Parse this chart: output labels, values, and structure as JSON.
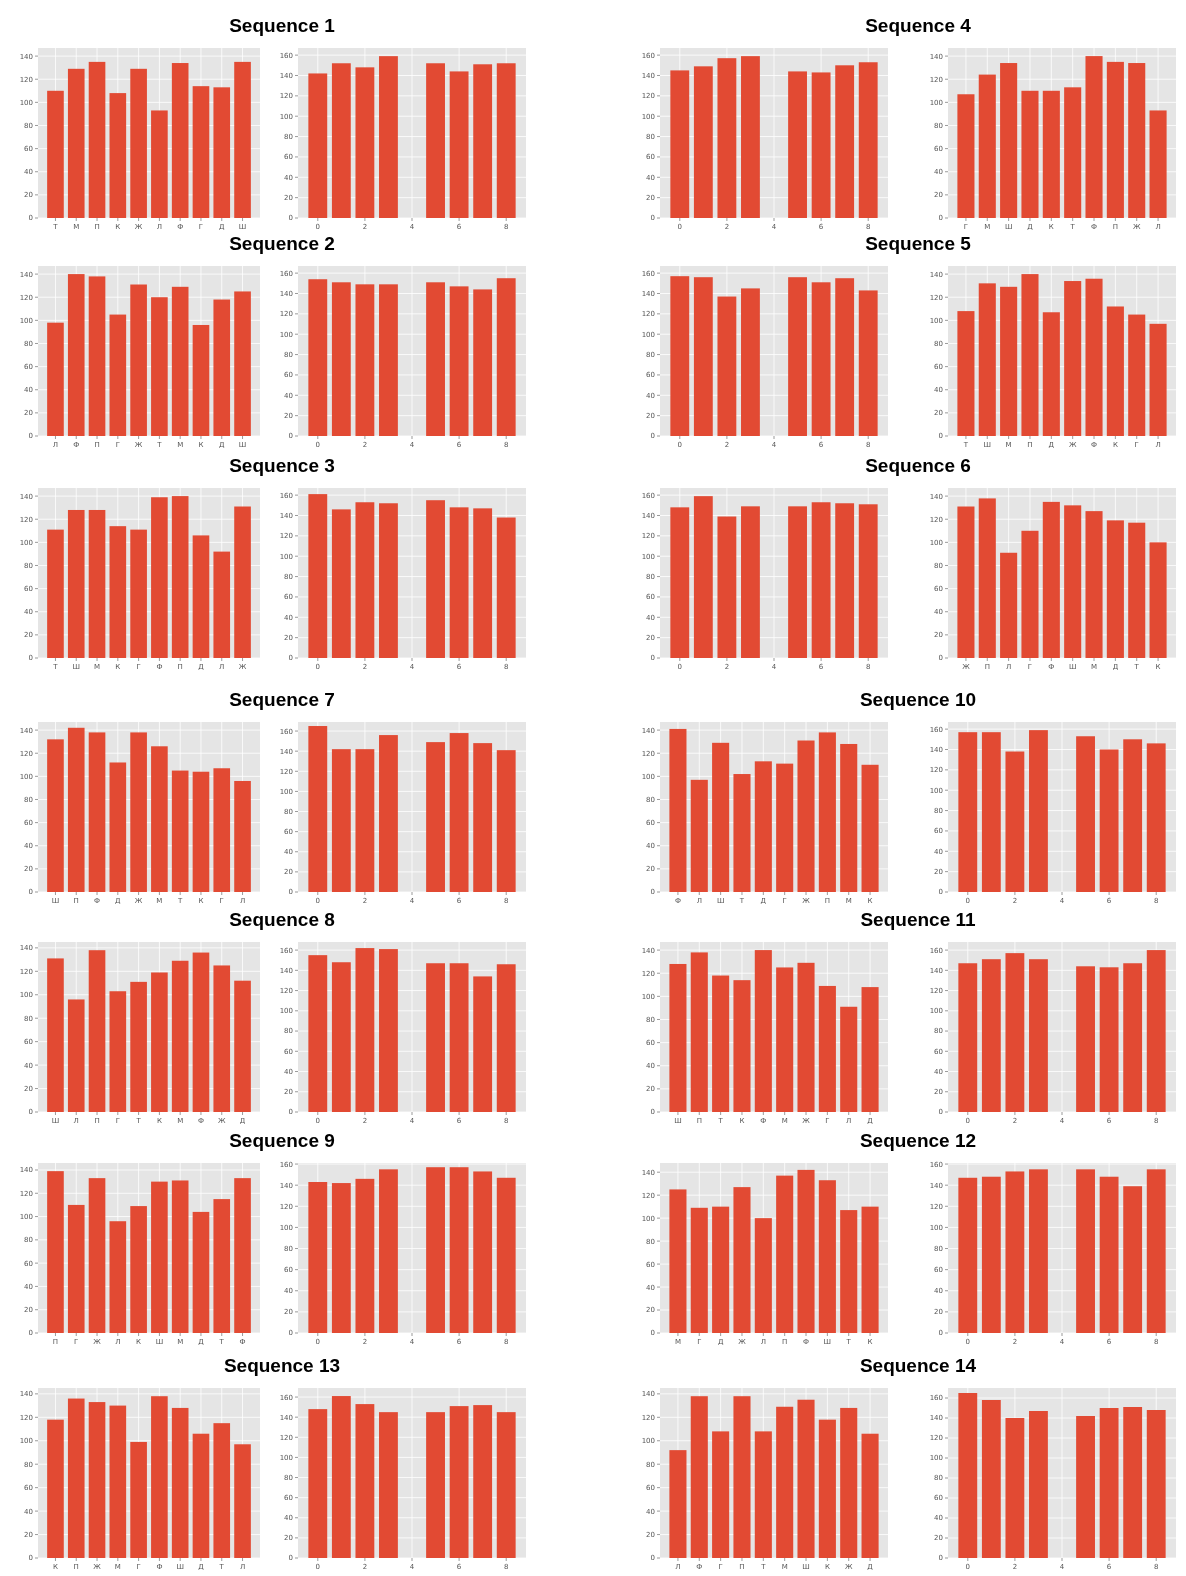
{
  "chart_data": [
    {
      "type": "bar",
      "title": "Sequence 1",
      "categories": [
        "Т",
        "М",
        "П",
        "К",
        "Ж",
        "Л",
        "Ф",
        "Г",
        "Д",
        "Ш"
      ],
      "values": [
        110,
        129,
        135,
        108,
        129,
        93,
        134,
        114,
        113,
        135
      ],
      "color": "#e24a33",
      "ylim": [
        0,
        147
      ],
      "yticks": [
        0,
        20,
        40,
        60,
        80,
        100,
        120,
        140
      ],
      "grid": true
    },
    {
      "type": "bar",
      "x": [
        0,
        1,
        2,
        3,
        5,
        6,
        7,
        8
      ],
      "values": [
        142,
        152,
        148,
        159,
        152,
        144,
        151,
        152
      ],
      "color": "#e24a33",
      "xlim": [
        -0.84,
        8.84
      ],
      "xticks": [
        0,
        2,
        4,
        6,
        8
      ],
      "ylim": [
        0,
        167
      ],
      "yticks": [
        0,
        20,
        40,
        60,
        80,
        100,
        120,
        140,
        160
      ],
      "grid": true
    },
    {
      "type": "bar",
      "title": "Sequence 4",
      "x": [
        0,
        1,
        2,
        3,
        5,
        6,
        7,
        8
      ],
      "values": [
        145,
        149,
        157,
        159,
        144,
        143,
        150,
        153
      ],
      "color": "#e24a33",
      "xlim": [
        -0.84,
        8.84
      ],
      "xticks": [
        0,
        2,
        4,
        6,
        8
      ],
      "ylim": [
        0,
        167
      ],
      "yticks": [
        0,
        20,
        40,
        60,
        80,
        100,
        120,
        140,
        160
      ],
      "grid": true
    },
    {
      "type": "bar",
      "categories": [
        "Г",
        "М",
        "Ш",
        "Д",
        "К",
        "Т",
        "Ф",
        "П",
        "Ж",
        "Л"
      ],
      "values": [
        107,
        124,
        134,
        110,
        110,
        113,
        140,
        135,
        134,
        93
      ],
      "color": "#e24a33",
      "ylim": [
        0,
        147
      ],
      "yticks": [
        0,
        20,
        40,
        60,
        80,
        100,
        120,
        140
      ],
      "grid": true
    },
    {
      "type": "bar",
      "title": "Sequence 2",
      "categories": [
        "Л",
        "Ф",
        "П",
        "Г",
        "Ж",
        "Т",
        "М",
        "К",
        "Д",
        "Ш"
      ],
      "values": [
        98,
        140,
        138,
        105,
        131,
        120,
        129,
        96,
        118,
        125
      ],
      "color": "#e24a33",
      "ylim": [
        0,
        147
      ],
      "yticks": [
        0,
        20,
        40,
        60,
        80,
        100,
        120,
        140
      ],
      "grid": true
    },
    {
      "type": "bar",
      "x": [
        0,
        1,
        2,
        3,
        5,
        6,
        7,
        8
      ],
      "values": [
        154,
        151,
        149,
        149,
        151,
        147,
        144,
        155
      ],
      "color": "#e24a33",
      "xlim": [
        -0.84,
        8.84
      ],
      "xticks": [
        0,
        2,
        4,
        6,
        8
      ],
      "ylim": [
        0,
        167
      ],
      "yticks": [
        0,
        20,
        40,
        60,
        80,
        100,
        120,
        140,
        160
      ],
      "grid": true
    },
    {
      "type": "bar",
      "title": "Sequence 5",
      "x": [
        0,
        1,
        2,
        3,
        5,
        6,
        7,
        8
      ],
      "values": [
        157,
        156,
        137,
        145,
        156,
        151,
        155,
        143
      ],
      "color": "#e24a33",
      "xlim": [
        -0.84,
        8.84
      ],
      "xticks": [
        0,
        2,
        4,
        6,
        8
      ],
      "ylim": [
        0,
        167
      ],
      "yticks": [
        0,
        20,
        40,
        60,
        80,
        100,
        120,
        140,
        160
      ],
      "grid": true
    },
    {
      "type": "bar",
      "categories": [
        "Т",
        "Ш",
        "М",
        "П",
        "Д",
        "Ж",
        "Ф",
        "К",
        "Г",
        "Л"
      ],
      "values": [
        108,
        132,
        129,
        140,
        107,
        134,
        136,
        112,
        105,
        97
      ],
      "color": "#e24a33",
      "ylim": [
        0,
        147
      ],
      "yticks": [
        0,
        20,
        40,
        60,
        80,
        100,
        120,
        140
      ],
      "grid": true
    },
    {
      "type": "bar",
      "title": "Sequence 3",
      "categories": [
        "Т",
        "Ш",
        "М",
        "К",
        "Г",
        "Ф",
        "П",
        "Д",
        "Л",
        "Ж"
      ],
      "values": [
        111,
        128,
        128,
        114,
        111,
        139,
        140,
        106,
        92,
        131
      ],
      "color": "#e24a33",
      "ylim": [
        0,
        147
      ],
      "yticks": [
        0,
        20,
        40,
        60,
        80,
        100,
        120,
        140
      ],
      "grid": true
    },
    {
      "type": "bar",
      "x": [
        0,
        1,
        2,
        3,
        5,
        6,
        7,
        8
      ],
      "values": [
        161,
        146,
        153,
        152,
        155,
        148,
        147,
        138
      ],
      "color": "#e24a33",
      "xlim": [
        -0.84,
        8.84
      ],
      "xticks": [
        0,
        2,
        4,
        6,
        8
      ],
      "ylim": [
        0,
        167
      ],
      "yticks": [
        0,
        20,
        40,
        60,
        80,
        100,
        120,
        140,
        160
      ],
      "grid": true
    },
    {
      "type": "bar",
      "title": "Sequence 6",
      "x": [
        0,
        1,
        2,
        3,
        5,
        6,
        7,
        8
      ],
      "values": [
        148,
        159,
        139,
        149,
        149,
        153,
        152,
        151
      ],
      "color": "#e24a33",
      "xlim": [
        -0.84,
        8.84
      ],
      "xticks": [
        0,
        2,
        4,
        6,
        8
      ],
      "ylim": [
        0,
        167
      ],
      "yticks": [
        0,
        20,
        40,
        60,
        80,
        100,
        120,
        140,
        160
      ],
      "grid": true
    },
    {
      "type": "bar",
      "categories": [
        "Ж",
        "П",
        "Л",
        "Г",
        "Ф",
        "Ш",
        "М",
        "Д",
        "Т",
        "К"
      ],
      "values": [
        131,
        138,
        91,
        110,
        135,
        132,
        127,
        119,
        117,
        100
      ],
      "color": "#e24a33",
      "ylim": [
        0,
        147
      ],
      "yticks": [
        0,
        20,
        40,
        60,
        80,
        100,
        120,
        140
      ],
      "grid": true
    },
    {
      "type": "bar",
      "title": "Sequence 7",
      "categories": [
        "Ш",
        "П",
        "Ф",
        "Д",
        "Ж",
        "М",
        "Т",
        "К",
        "Г",
        "Л"
      ],
      "values": [
        132,
        142,
        138,
        112,
        138,
        126,
        105,
        104,
        107,
        96
      ],
      "color": "#e24a33",
      "ylim": [
        0,
        147
      ],
      "yticks": [
        0,
        20,
        40,
        60,
        80,
        100,
        120,
        140
      ],
      "grid": true
    },
    {
      "type": "bar",
      "x": [
        0,
        1,
        2,
        3,
        5,
        6,
        7,
        8
      ],
      "values": [
        165,
        142,
        142,
        156,
        149,
        158,
        148,
        141
      ],
      "color": "#e24a33",
      "xlim": [
        -0.84,
        8.84
      ],
      "xticks": [
        0,
        2,
        4,
        6,
        8
      ],
      "ylim": [
        0,
        169
      ],
      "yticks": [
        0,
        20,
        40,
        60,
        80,
        100,
        120,
        140,
        160
      ],
      "grid": true
    },
    {
      "type": "bar",
      "title": "Sequence 10",
      "categories": [
        "Ф",
        "Л",
        "Ш",
        "Т",
        "Д",
        "Г",
        "Ж",
        "П",
        "М",
        "К"
      ],
      "values": [
        141,
        97,
        129,
        102,
        113,
        111,
        131,
        138,
        128,
        110
      ],
      "color": "#e24a33",
      "ylim": [
        0,
        147
      ],
      "yticks": [
        0,
        20,
        40,
        60,
        80,
        100,
        120,
        140
      ],
      "grid": true
    },
    {
      "type": "bar",
      "x": [
        0,
        1,
        2,
        3,
        5,
        6,
        7,
        8
      ],
      "values": [
        157,
        157,
        138,
        159,
        153,
        140,
        150,
        146
      ],
      "color": "#e24a33",
      "xlim": [
        -0.84,
        8.84
      ],
      "xticks": [
        0,
        2,
        4,
        6,
        8
      ],
      "ylim": [
        0,
        167
      ],
      "yticks": [
        0,
        20,
        40,
        60,
        80,
        100,
        120,
        140,
        160
      ],
      "grid": true
    },
    {
      "type": "bar",
      "title": "Sequence 8",
      "categories": [
        "Ш",
        "Л",
        "П",
        "Г",
        "Т",
        "К",
        "М",
        "Ф",
        "Ж",
        "Д"
      ],
      "values": [
        131,
        96,
        138,
        103,
        111,
        119,
        129,
        136,
        125,
        112
      ],
      "color": "#e24a33",
      "ylim": [
        0,
        145
      ],
      "yticks": [
        0,
        20,
        40,
        60,
        80,
        100,
        120,
        140
      ],
      "grid": true
    },
    {
      "type": "bar",
      "x": [
        0,
        1,
        2,
        3,
        5,
        6,
        7,
        8
      ],
      "values": [
        155,
        148,
        162,
        161,
        147,
        147,
        134,
        146
      ],
      "color": "#e24a33",
      "xlim": [
        -0.84,
        8.84
      ],
      "xticks": [
        0,
        2,
        4,
        6,
        8
      ],
      "ylim": [
        0,
        168
      ],
      "yticks": [
        0,
        20,
        40,
        60,
        80,
        100,
        120,
        140,
        160
      ],
      "grid": true
    },
    {
      "type": "bar",
      "title": "Sequence 11",
      "categories": [
        "Ш",
        "П",
        "Т",
        "К",
        "Ф",
        "М",
        "Ж",
        "Г",
        "Л",
        "Д"
      ],
      "values": [
        128,
        138,
        118,
        114,
        140,
        125,
        129,
        109,
        91,
        108
      ],
      "color": "#e24a33",
      "ylim": [
        0,
        147
      ],
      "yticks": [
        0,
        20,
        40,
        60,
        80,
        100,
        120,
        140
      ],
      "grid": true
    },
    {
      "type": "bar",
      "x": [
        0,
        1,
        2,
        3,
        5,
        6,
        7,
        8
      ],
      "values": [
        147,
        151,
        157,
        151,
        144,
        143,
        147,
        160
      ],
      "color": "#e24a33",
      "xlim": [
        -0.84,
        8.84
      ],
      "xticks": [
        0,
        2,
        4,
        6,
        8
      ],
      "ylim": [
        0,
        168
      ],
      "yticks": [
        0,
        20,
        40,
        60,
        80,
        100,
        120,
        140,
        160
      ],
      "grid": true
    },
    {
      "type": "bar",
      "title": "Sequence 9",
      "categories": [
        "П",
        "Г",
        "Ж",
        "Л",
        "К",
        "Ш",
        "М",
        "Д",
        "Т",
        "Ф"
      ],
      "values": [
        139,
        110,
        133,
        96,
        109,
        130,
        131,
        104,
        115,
        133
      ],
      "color": "#e24a33",
      "ylim": [
        0,
        146
      ],
      "yticks": [
        0,
        20,
        40,
        60,
        80,
        100,
        120,
        140
      ],
      "grid": true
    },
    {
      "type": "bar",
      "x": [
        0,
        1,
        2,
        3,
        5,
        6,
        7,
        8
      ],
      "values": [
        143,
        142,
        146,
        155,
        157,
        157,
        153,
        147
      ],
      "color": "#e24a33",
      "xlim": [
        -0.84,
        8.84
      ],
      "xticks": [
        0,
        2,
        4,
        6,
        8
      ],
      "ylim": [
        0,
        161
      ],
      "yticks": [
        0,
        20,
        40,
        60,
        80,
        100,
        120,
        140,
        160
      ],
      "grid": true
    },
    {
      "type": "bar",
      "title": "Sequence 12",
      "categories": [
        "М",
        "Г",
        "Д",
        "Ж",
        "Л",
        "П",
        "Ф",
        "Ш",
        "Т",
        "К"
      ],
      "values": [
        125,
        109,
        110,
        127,
        100,
        137,
        142,
        133,
        107,
        110
      ],
      "color": "#e24a33",
      "ylim": [
        0,
        148
      ],
      "yticks": [
        0,
        20,
        40,
        60,
        80,
        100,
        120,
        140
      ],
      "grid": true
    },
    {
      "type": "bar",
      "x": [
        0,
        1,
        2,
        3,
        5,
        6,
        7,
        8
      ],
      "values": [
        147,
        148,
        153,
        155,
        155,
        148,
        139,
        155
      ],
      "color": "#e24a33",
      "xlim": [
        -0.84,
        8.84
      ],
      "xticks": [
        0,
        2,
        4,
        6,
        8
      ],
      "ylim": [
        0,
        161
      ],
      "yticks": [
        0,
        20,
        40,
        60,
        80,
        100,
        120,
        140,
        160
      ],
      "grid": true
    },
    {
      "type": "bar",
      "title": "Sequence 13",
      "categories": [
        "К",
        "П",
        "Ж",
        "М",
        "Г",
        "Ф",
        "Ш",
        "Д",
        "Т",
        "Л"
      ],
      "values": [
        118,
        136,
        133,
        130,
        99,
        138,
        128,
        106,
        115,
        97
      ],
      "color": "#e24a33",
      "ylim": [
        0,
        145
      ],
      "yticks": [
        0,
        20,
        40,
        60,
        80,
        100,
        120,
        140
      ],
      "grid": true
    },
    {
      "type": "bar",
      "x": [
        0,
        1,
        2,
        3,
        5,
        6,
        7,
        8
      ],
      "values": [
        148,
        161,
        153,
        145,
        145,
        151,
        152,
        145
      ],
      "color": "#e24a33",
      "xlim": [
        -0.84,
        8.84
      ],
      "xticks": [
        0,
        2,
        4,
        6,
        8
      ],
      "ylim": [
        0,
        169
      ],
      "yticks": [
        0,
        20,
        40,
        60,
        80,
        100,
        120,
        140,
        160
      ],
      "grid": true
    },
    {
      "type": "bar",
      "title": "Sequence 14",
      "categories": [
        "Л",
        "Ф",
        "Г",
        "П",
        "Т",
        "М",
        "Ш",
        "К",
        "Ж",
        "Д"
      ],
      "values": [
        92,
        138,
        108,
        138,
        108,
        129,
        135,
        118,
        128,
        106
      ],
      "color": "#e24a33",
      "ylim": [
        0,
        145
      ],
      "yticks": [
        0,
        20,
        40,
        60,
        80,
        100,
        120,
        140
      ],
      "grid": true
    },
    {
      "type": "bar",
      "x": [
        0,
        1,
        2,
        3,
        5,
        6,
        7,
        8
      ],
      "values": [
        165,
        158,
        140,
        147,
        142,
        150,
        151,
        148
      ],
      "color": "#e24a33",
      "xlim": [
        -0.84,
        8.84
      ],
      "xticks": [
        0,
        2,
        4,
        6,
        8
      ],
      "ylim": [
        0,
        170
      ],
      "yticks": [
        0,
        20,
        40,
        60,
        80,
        100,
        120,
        140,
        160
      ],
      "grid": true
    }
  ]
}
